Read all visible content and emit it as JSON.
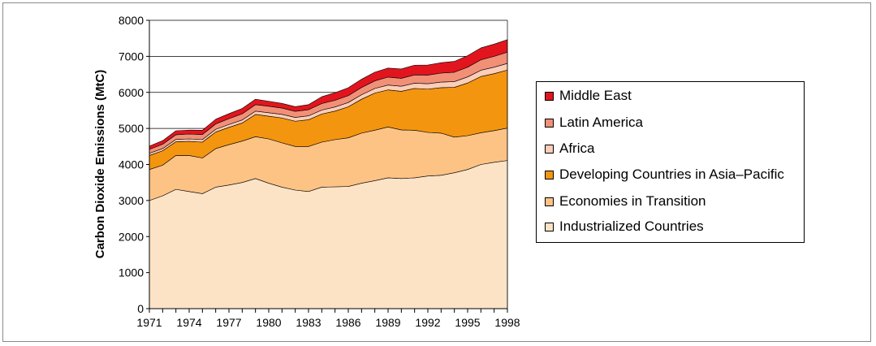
{
  "chart_data": {
    "type": "area",
    "stacked": true,
    "xlabel": "",
    "ylabel": "Carbon Dioxide Emissions (MtC)",
    "ylim": [
      0,
      8000
    ],
    "yticks": [
      0,
      1000,
      2000,
      3000,
      4000,
      5000,
      6000,
      7000,
      8000
    ],
    "xticks": [
      1971,
      1974,
      1977,
      1980,
      1983,
      1986,
      1989,
      1992,
      1995,
      1998
    ],
    "x": [
      1971,
      1972,
      1973,
      1974,
      1975,
      1976,
      1977,
      1978,
      1979,
      1980,
      1981,
      1982,
      1983,
      1984,
      1985,
      1986,
      1987,
      1988,
      1989,
      1990,
      1991,
      1992,
      1993,
      1994,
      1995,
      1996,
      1997,
      1998
    ],
    "grid": "horizontal",
    "legend_position": "right",
    "series": [
      {
        "name": "Industrialized Countries",
        "color": "#fde3c6",
        "values": [
          3000,
          3130,
          3310,
          3250,
          3190,
          3370,
          3430,
          3500,
          3610,
          3480,
          3370,
          3290,
          3250,
          3370,
          3380,
          3390,
          3480,
          3550,
          3630,
          3610,
          3630,
          3680,
          3700,
          3770,
          3860,
          4000,
          4060,
          4110
        ]
      },
      {
        "name": "Economies in Transition",
        "color": "#fcc385",
        "values": [
          860,
          850,
          940,
          1000,
          990,
          1070,
          1120,
          1150,
          1160,
          1230,
          1230,
          1210,
          1250,
          1250,
          1310,
          1350,
          1390,
          1400,
          1410,
          1350,
          1320,
          1210,
          1170,
          990,
          940,
          880,
          880,
          900
        ]
      },
      {
        "name": "Developing Countries in Asia–Pacific",
        "color": "#f4950f",
        "values": [
          390,
          400,
          380,
          390,
          440,
          460,
          480,
          500,
          620,
          630,
          690,
          700,
          740,
          780,
          790,
          860,
          940,
          1030,
          1030,
          1070,
          1160,
          1200,
          1260,
          1380,
          1460,
          1560,
          1580,
          1610
        ]
      },
      {
        "name": "Africa",
        "color": "#fccdb7",
        "values": [
          60,
          60,
          65,
          70,
          70,
          75,
          80,
          85,
          90,
          95,
          100,
          105,
          110,
          110,
          115,
          120,
          125,
          130,
          135,
          140,
          145,
          150,
          155,
          160,
          170,
          175,
          180,
          185
        ]
      },
      {
        "name": "Latin America",
        "color": "#f19077",
        "values": [
          110,
          120,
          130,
          135,
          140,
          150,
          160,
          170,
          180,
          180,
          175,
          170,
          170,
          180,
          185,
          190,
          200,
          210,
          220,
          220,
          230,
          240,
          250,
          260,
          270,
          290,
          300,
          310
        ]
      },
      {
        "name": "Middle East",
        "color": "#e2151e",
        "values": [
          90,
          100,
          110,
          110,
          120,
          130,
          140,
          150,
          150,
          140,
          130,
          130,
          140,
          190,
          210,
          220,
          230,
          240,
          250,
          260,
          270,
          280,
          290,
          300,
          320,
          330,
          340,
          350
        ]
      }
    ]
  },
  "legend": {
    "items": [
      {
        "label": "Middle East",
        "color": "#e2151e"
      },
      {
        "label": "Latin America",
        "color": "#f19077"
      },
      {
        "label": "Africa",
        "color": "#fccdb7"
      },
      {
        "label": "Developing Countries in Asia–Pacific",
        "color": "#f4950f"
      },
      {
        "label": "Economies in Transition",
        "color": "#fcc385"
      },
      {
        "label": "Industrialized Countries",
        "color": "#fde3c6"
      }
    ]
  }
}
